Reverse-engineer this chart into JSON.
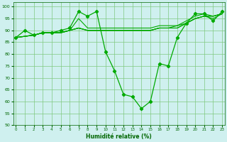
{
  "xlabel": "Humidité relative (%)",
  "background_color": "#cff0ef",
  "grid_color": "#7fc87f",
  "line_color": "#00aa00",
  "ylim": [
    50,
    102
  ],
  "xlim": [
    -0.3,
    23.3
  ],
  "yticks": [
    50,
    55,
    60,
    65,
    70,
    75,
    80,
    85,
    90,
    95,
    100
  ],
  "xticks": [
    0,
    1,
    2,
    3,
    4,
    5,
    6,
    7,
    8,
    9,
    10,
    11,
    12,
    13,
    14,
    15,
    16,
    17,
    18,
    19,
    20,
    21,
    22,
    23
  ],
  "lines": [
    {
      "x": [
        0,
        1,
        2,
        3,
        4,
        5,
        6,
        7,
        8,
        9,
        10,
        11,
        12,
        13,
        14,
        15,
        16,
        17,
        18,
        19,
        20,
        21,
        22,
        23
      ],
      "y": [
        87,
        90,
        88,
        89,
        89,
        90,
        91,
        98,
        96,
        98,
        81,
        73,
        63,
        62,
        57,
        60,
        76,
        75,
        87,
        93,
        97,
        97,
        94,
        98
      ],
      "has_markers": true
    },
    {
      "x": [
        0,
        2,
        3,
        4,
        5,
        6,
        7,
        8,
        9,
        10,
        11,
        12,
        13,
        14,
        15,
        16,
        17,
        18,
        19,
        20,
        21,
        22,
        23
      ],
      "y": [
        87,
        88,
        89,
        89,
        89,
        90,
        91,
        90,
        90,
        90,
        90,
        90,
        90,
        90,
        90,
        91,
        91,
        91,
        93,
        95,
        96,
        95,
        97
      ],
      "has_markers": false
    },
    {
      "x": [
        0,
        2,
        3,
        4,
        5,
        6,
        7,
        8,
        9,
        10,
        11,
        12,
        13,
        14,
        15,
        16,
        17,
        18,
        19,
        20,
        21,
        22,
        23
      ],
      "y": [
        87,
        88,
        89,
        89,
        89,
        90,
        91,
        90,
        90,
        90,
        90,
        90,
        90,
        90,
        90,
        91,
        91,
        91,
        93,
        95,
        96,
        96,
        97
      ],
      "has_markers": false
    },
    {
      "x": [
        0,
        2,
        3,
        4,
        5,
        6,
        7,
        8,
        9,
        10,
        11,
        12,
        13,
        14,
        15,
        16,
        17,
        18,
        19,
        20,
        21,
        22,
        23
      ],
      "y": [
        87,
        88,
        89,
        89,
        89,
        90,
        91,
        90,
        90,
        90,
        90,
        90,
        90,
        90,
        90,
        91,
        91,
        92,
        93,
        95,
        96,
        96,
        97
      ],
      "has_markers": false
    },
    {
      "x": [
        0,
        2,
        3,
        4,
        5,
        6,
        7,
        8,
        9,
        10,
        11,
        12,
        13,
        14,
        15,
        16,
        17,
        18,
        19,
        20,
        21,
        22,
        23
      ],
      "y": [
        87,
        88,
        89,
        89,
        89,
        90,
        95,
        91,
        91,
        91,
        91,
        91,
        91,
        91,
        91,
        92,
        92,
        92,
        94,
        96,
        97,
        96,
        97
      ],
      "has_markers": false
    }
  ]
}
